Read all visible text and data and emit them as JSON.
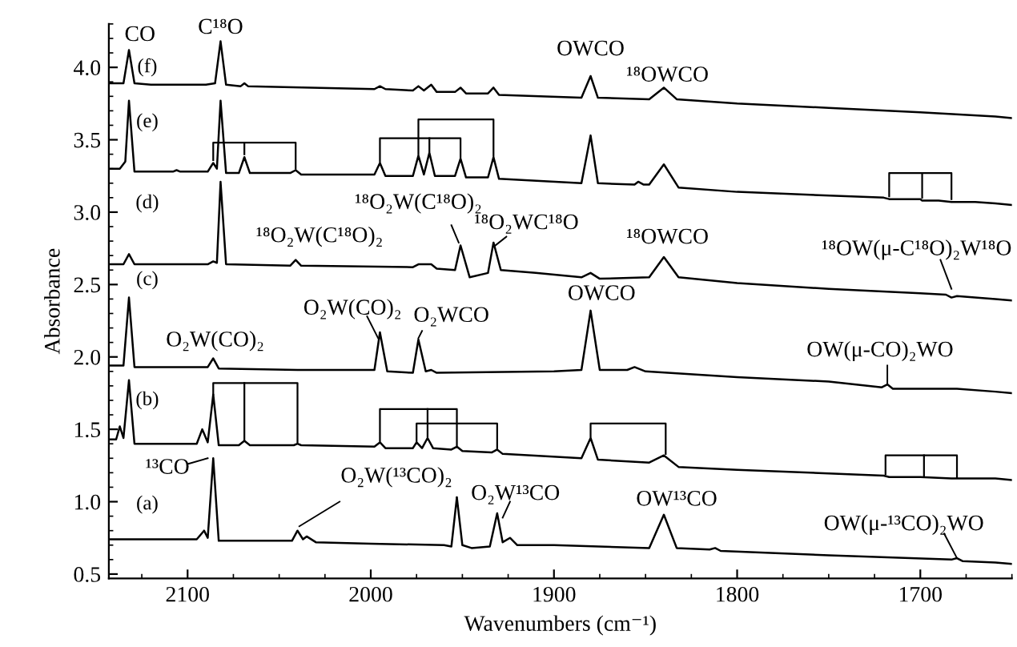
{
  "chart_data": {
    "type": "line",
    "xlabel": "Wavenumbers (cm⁻¹)",
    "ylabel": "Absorbance",
    "xlim": [
      2143,
      1650
    ],
    "ylim": [
      0.47,
      4.3
    ],
    "xticks": [
      2100,
      2000,
      1900,
      1800,
      1700
    ],
    "yticks": [
      0.5,
      {
        "value": 1,
        "label": "1.0"
      },
      1.5,
      {
        "value": 2,
        "label": "2.0"
      },
      2.5,
      {
        "value": 3,
        "label": "3.0"
      },
      3.5,
      {
        "value": 4,
        "label": "4.0"
      }
    ],
    "annotations": [
      "CO",
      "C¹⁸O",
      "OWCO",
      "¹⁸OWCO",
      "¹⁸O₂W(C¹⁸O)₂",
      "¹⁸O₂WC¹⁸O",
      "¹⁸O₂W(C¹⁸O)₂",
      "¹⁸OWCO",
      "¹⁸OW(μ-C¹⁸O)₂W¹⁸O",
      "O₂W(CO)₂",
      "O₂WCO",
      "O₂W(CO)₂",
      "OWCO",
      "OW(μ-CO)₂WO",
      "¹³CO",
      {
        "text": "O₂W(¹³CO)₂",
        "x": 1953,
        "y": 1.03
      },
      "O₂W¹³CO",
      "OW¹³CO",
      "OW(μ-¹³CO)₂WO",
      "(f)",
      "(e)",
      "(d)",
      "(c)",
      "(b)",
      "(a)"
    ],
    "series": [
      {
        "color": "#000000",
        "x": [
          2143,
          2135,
          2132,
          2129,
          2120,
          2090,
          2085,
          2082,
          2079,
          2071,
          2069,
          2067,
          1998,
          1995,
          1992,
          1977,
          1974,
          1971,
          1967,
          1964,
          1954,
          1951,
          1948,
          1936,
          1933,
          1930,
          1885,
          1880,
          1876,
          1848,
          1840,
          1833,
          1800,
          1750,
          1700,
          1659,
          1650
        ],
        "values": [
          3.89,
          3.89,
          4.12,
          3.89,
          3.88,
          3.88,
          3.89,
          4.18,
          3.88,
          3.87,
          3.89,
          3.87,
          3.85,
          3.87,
          3.85,
          3.84,
          3.87,
          3.84,
          3.88,
          3.83,
          3.83,
          3.86,
          3.82,
          3.82,
          3.86,
          3.81,
          3.79,
          3.94,
          3.79,
          3.78,
          3.86,
          3.78,
          3.75,
          3.72,
          3.69,
          3.66,
          3.65
        ]
      },
      {
        "color": "#000000",
        "x": [
          2143,
          2137,
          2134,
          2132,
          2129,
          2108,
          2106,
          2104,
          2089,
          2086,
          2084,
          2082,
          2079,
          2072,
          2069,
          2066,
          2044,
          2041,
          2038,
          1998,
          1995,
          1992,
          1977,
          1974,
          1971,
          1968,
          1965,
          1954,
          1951,
          1948,
          1936,
          1933,
          1930,
          1885,
          1880,
          1876,
          1856,
          1854,
          1851,
          1848,
          1840,
          1832,
          1800,
          1720,
          1717,
          1700,
          1699,
          1690,
          1683,
          1670,
          1659,
          1650
        ],
        "values": [
          3.3,
          3.3,
          3.35,
          3.77,
          3.28,
          3.28,
          3.29,
          3.28,
          3.28,
          3.34,
          3.3,
          3.77,
          3.27,
          3.27,
          3.38,
          3.27,
          3.27,
          3.29,
          3.26,
          3.26,
          3.34,
          3.25,
          3.25,
          3.39,
          3.26,
          3.41,
          3.25,
          3.25,
          3.37,
          3.24,
          3.24,
          3.38,
          3.23,
          3.2,
          3.53,
          3.2,
          3.19,
          3.21,
          3.19,
          3.19,
          3.33,
          3.17,
          3.14,
          3.1,
          3.09,
          3.09,
          3.08,
          3.08,
          3.07,
          3.07,
          3.06,
          3.05
        ]
      },
      {
        "color": "#000000",
        "x": [
          2143,
          2135,
          2132,
          2129,
          2089,
          2086,
          2084,
          2082,
          2079,
          2044,
          2041,
          2038,
          1977,
          1974,
          1967,
          1964,
          1954,
          1951,
          1946,
          1936,
          1933,
          1929,
          1910,
          1885,
          1880,
          1875,
          1848,
          1840,
          1832,
          1800,
          1750,
          1700,
          1686,
          1683,
          1680,
          1659,
          1650
        ],
        "values": [
          2.64,
          2.64,
          2.71,
          2.64,
          2.64,
          2.66,
          2.65,
          3.21,
          2.64,
          2.63,
          2.67,
          2.63,
          2.62,
          2.64,
          2.64,
          2.61,
          2.6,
          2.77,
          2.55,
          2.58,
          2.79,
          2.6,
          2.58,
          2.55,
          2.58,
          2.54,
          2.55,
          2.69,
          2.55,
          2.51,
          2.47,
          2.44,
          2.43,
          2.41,
          2.42,
          2.4,
          2.39
        ]
      },
      {
        "color": "#000000",
        "x": [
          2143,
          2135,
          2132,
          2129,
          2089,
          2086,
          2083,
          2040,
          1998,
          1995,
          1991,
          1977,
          1974,
          1970,
          1967,
          1964,
          1900,
          1885,
          1880,
          1875,
          1860,
          1856,
          1850,
          1800,
          1750,
          1721,
          1718,
          1715,
          1680,
          1659,
          1650
        ],
        "values": [
          1.94,
          1.94,
          2.41,
          1.93,
          1.93,
          1.99,
          1.92,
          1.91,
          1.91,
          2.17,
          1.9,
          1.89,
          2.12,
          1.9,
          1.91,
          1.89,
          1.9,
          1.91,
          2.32,
          1.91,
          1.91,
          1.93,
          1.9,
          1.86,
          1.83,
          1.79,
          1.81,
          1.78,
          1.78,
          1.76,
          1.75
        ]
      },
      {
        "color": "#000000",
        "x": [
          2143,
          2139,
          2137,
          2135,
          2132,
          2129,
          2095,
          2092,
          2089,
          2086,
          2083,
          2072,
          2069,
          2066,
          2042,
          2040,
          2038,
          1998,
          1995,
          1992,
          1977,
          1975,
          1972,
          1969,
          1966,
          1956,
          1953,
          1950,
          1934,
          1931,
          1928,
          1885,
          1880,
          1876,
          1848,
          1840,
          1832,
          1800,
          1720,
          1717,
          1700,
          1683,
          1659,
          1650
        ],
        "values": [
          1.43,
          1.43,
          1.52,
          1.44,
          1.84,
          1.4,
          1.4,
          1.5,
          1.41,
          1.74,
          1.39,
          1.39,
          1.42,
          1.39,
          1.39,
          1.4,
          1.39,
          1.38,
          1.41,
          1.37,
          1.37,
          1.41,
          1.37,
          1.44,
          1.37,
          1.36,
          1.38,
          1.35,
          1.34,
          1.36,
          1.33,
          1.3,
          1.44,
          1.29,
          1.27,
          1.32,
          1.24,
          1.22,
          1.18,
          1.17,
          1.17,
          1.16,
          1.16,
          1.15
        ]
      },
      {
        "color": "#000000",
        "x": [
          2143,
          2095,
          2091,
          2089,
          2086,
          2083,
          2043,
          2040,
          2037,
          2035,
          2030,
          2000,
          1960,
          1956,
          1953,
          1950,
          1945,
          1935,
          1931,
          1928,
          1924,
          1920,
          1900,
          1848,
          1840,
          1833,
          1815,
          1812,
          1809,
          1750,
          1683,
          1680,
          1677,
          1659,
          1650
        ],
        "values": [
          0.74,
          0.74,
          0.8,
          0.75,
          1.3,
          0.73,
          0.73,
          0.8,
          0.74,
          0.76,
          0.72,
          0.71,
          0.7,
          0.69,
          1.03,
          0.7,
          0.68,
          0.69,
          0.92,
          0.72,
          0.75,
          0.7,
          0.7,
          0.68,
          0.91,
          0.68,
          0.67,
          0.68,
          0.66,
          0.63,
          0.6,
          0.61,
          0.59,
          0.58,
          0.57
        ]
      }
    ]
  }
}
